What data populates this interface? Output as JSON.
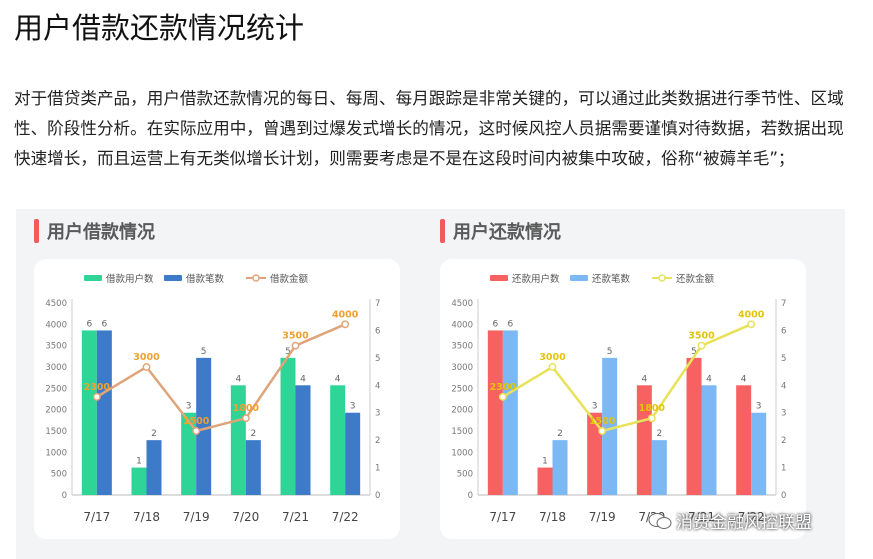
{
  "page": {
    "title": "用户借款还款情况统计",
    "intro": "对于借贷类产品，用户借款还款情况的每日、每周、每月跟踪是非常关键的，可以通过此类数据进行季节性、区域性、阶段性分析。在实际应用中，曾遇到过爆发式增长的情况，这时候风控人员据需要谨慎对待数据，若数据出现快速增长，而且运营上有无类似增长计划，则需要考虑是不是在这段时间内被集中攻破，俗称“被薅羊毛”；"
  },
  "watermark": {
    "text": "消费金融风控联盟"
  },
  "chart_data": [
    {
      "type": "bar+line",
      "title": "用户借款情况",
      "categories": [
        "7/17",
        "7/18",
        "7/19",
        "7/20",
        "7/21",
        "7/22"
      ],
      "series": [
        {
          "name": "借款用户数",
          "kind": "bar",
          "axis": "right",
          "color": "#2fd597",
          "values": [
            6,
            1,
            3,
            4,
            5,
            4
          ]
        },
        {
          "name": "借款笔数",
          "kind": "bar",
          "axis": "right",
          "color": "#3d7bc8",
          "values": [
            6,
            2,
            5,
            2,
            4,
            3
          ]
        },
        {
          "name": "借款金额",
          "kind": "line",
          "axis": "left",
          "color": "#e0a47a",
          "label_color": "#f0a030",
          "values": [
            2300,
            3000,
            1500,
            1800,
            3500,
            4000
          ]
        }
      ],
      "left_axis": {
        "ylim": [
          0,
          4500
        ],
        "ticks": [
          "0",
          "500",
          "1000",
          "1500",
          "2000",
          "2500",
          "3000",
          "3500",
          "4000",
          "4500"
        ]
      },
      "right_axis": {
        "ylim": [
          0,
          7
        ],
        "ticks": [
          "0",
          "1",
          "2",
          "3",
          "4",
          "5",
          "6",
          "7"
        ]
      },
      "legend": "top",
      "grid": false
    },
    {
      "type": "bar+line",
      "title": "用户还款情况",
      "categories": [
        "7/17",
        "7/18",
        "7/19",
        "7/20",
        "7/21",
        "7/22"
      ],
      "series": [
        {
          "name": "还款用户数",
          "kind": "bar",
          "axis": "right",
          "color": "#f86161",
          "values": [
            6,
            1,
            3,
            4,
            5,
            4
          ]
        },
        {
          "name": "还款笔数",
          "kind": "bar",
          "axis": "right",
          "color": "#7cb8f3",
          "values": [
            6,
            2,
            5,
            2,
            4,
            3
          ]
        },
        {
          "name": "还款金额",
          "kind": "line",
          "axis": "left",
          "color": "#e8e25a",
          "label_color": "#e3c40c",
          "values": [
            2300,
            3000,
            1500,
            1800,
            3500,
            4000
          ]
        }
      ],
      "left_axis": {
        "ylim": [
          0,
          4500
        ],
        "ticks": [
          "0",
          "500",
          "1000",
          "1500",
          "2000",
          "2500",
          "3000",
          "3500",
          "4000",
          "4500"
        ]
      },
      "right_axis": {
        "ylim": [
          0,
          7
        ],
        "ticks": [
          "0",
          "1",
          "2",
          "3",
          "4",
          "5",
          "6",
          "7"
        ]
      },
      "legend": "top",
      "grid": false
    }
  ]
}
